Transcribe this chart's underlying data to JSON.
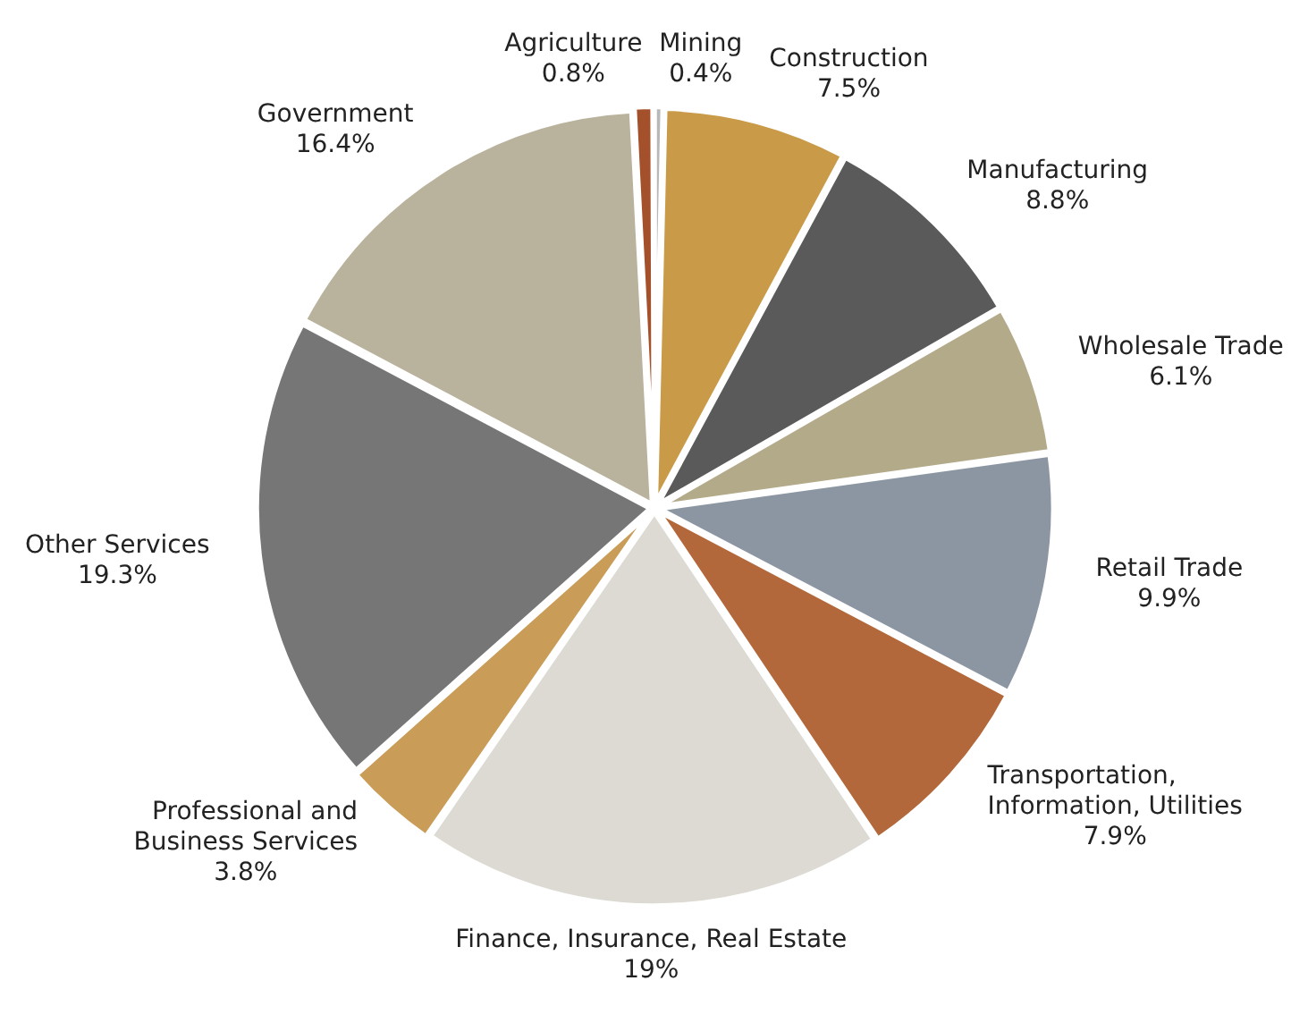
{
  "chart_data": {
    "type": "pie",
    "categories": [
      "Agriculture",
      "Mining",
      "Construction",
      "Manufacturing",
      "Wholesale Trade",
      "Retail Trade",
      "Transportation, Information, Utilities",
      "Finance, Insurance, Real Estate",
      "Professional and Business Services",
      "Other Services",
      "Government"
    ],
    "values": [
      0.8,
      0.4,
      7.5,
      8.8,
      6.1,
      9.9,
      7.9,
      19,
      3.8,
      19.3,
      16.4
    ],
    "value_labels": [
      "0.8%",
      "0.4%",
      "7.5%",
      "8.8%",
      "6.1%",
      "9.9%",
      "7.9%",
      "19%",
      "3.8%",
      "19.3%",
      "16.4%"
    ],
    "colors": [
      "#a4502a",
      "#b8b8b8",
      "#c99a48",
      "#5a5a5a",
      "#b3aa8a",
      "#8c96a2",
      "#b2683a",
      "#dcdad2",
      "#c99c58",
      "#767676",
      "#b9b29c"
    ],
    "legend": false
  }
}
